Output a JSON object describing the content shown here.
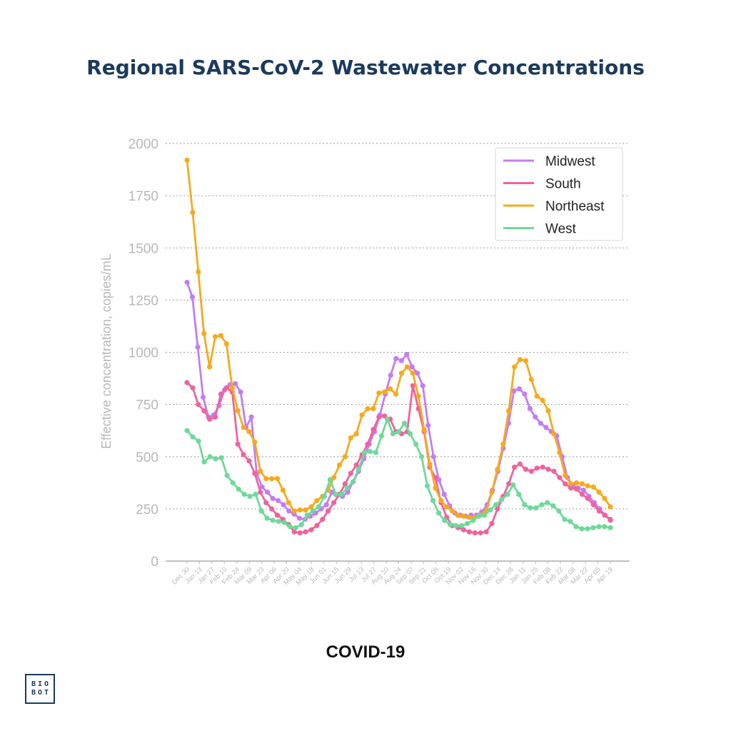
{
  "page": {
    "title": "Regional SARS-CoV-2 Wastewater Concentrations",
    "footer_title": "COVID-19",
    "logo_line1": "BIO",
    "logo_line2": "BOT"
  },
  "chart_data": {
    "type": "line",
    "ylabel": "Effective concentration, copies/mL",
    "ylim": [
      0,
      2000
    ],
    "yticks": [
      0,
      250,
      500,
      750,
      1000,
      1250,
      1500,
      1750,
      2000
    ],
    "grid": "horizontal-dotted",
    "legend": "top-right",
    "x_tick_labels": [
      "Dec 30",
      "Jan 13",
      "Jan 27",
      "Feb 10",
      "Feb 24",
      "Mar 09",
      "Mar 23",
      "Apr 06",
      "Apr 20",
      "May 04",
      "May 18",
      "Jun 01",
      "Jun 15",
      "Jun 29",
      "Jul 13",
      "Jul 27",
      "Aug 10",
      "Aug 24",
      "Sep 07",
      "Sep 21",
      "Oct 05",
      "Oct 19",
      "Nov 02",
      "Nov 16",
      "Nov 30",
      "Dec 14",
      "Dec 28",
      "Jan 11",
      "Jan 25",
      "Feb 08",
      "Feb 22",
      "Mar 08",
      "Mar 22",
      "Apr 05",
      "Apr 19"
    ],
    "series": [
      {
        "name": "Midwest",
        "color": "#c37cf5",
        "values": [
          1335,
          1265,
          1025,
          785,
          690,
          700,
          745,
          820,
          845,
          850,
          810,
          640,
          690,
          420,
          355,
          330,
          300,
          290,
          270,
          240,
          225,
          205,
          200,
          215,
          230,
          250,
          270,
          330,
          315,
          310,
          330,
          380,
          430,
          490,
          560,
          620,
          700,
          800,
          890,
          970,
          960,
          990,
          930,
          900,
          840,
          650,
          500,
          390,
          320,
          265,
          230,
          220,
          215,
          220,
          220,
          235,
          270,
          340,
          430,
          540,
          660,
          815,
          825,
          800,
          730,
          690,
          660,
          640,
          620,
          600,
          500,
          400,
          360,
          350,
          340,
          310,
          280,
          250,
          220,
          195
        ]
      },
      {
        "name": "South",
        "color": "#f0629e",
        "values": [
          855,
          830,
          750,
          720,
          680,
          690,
          800,
          830,
          810,
          560,
          510,
          480,
          420,
          330,
          280,
          250,
          220,
          200,
          175,
          140,
          135,
          140,
          150,
          170,
          200,
          240,
          280,
          320,
          370,
          420,
          460,
          510,
          560,
          630,
          690,
          695,
          680,
          620,
          610,
          620,
          840,
          730,
          620,
          450,
          400,
          280,
          210,
          170,
          160,
          150,
          140,
          135,
          135,
          140,
          180,
          250,
          310,
          370,
          450,
          465,
          440,
          430,
          445,
          450,
          440,
          430,
          400,
          370,
          350,
          345,
          320,
          300,
          270,
          240,
          220,
          200
        ]
      },
      {
        "name": "Northeast",
        "color": "#f7a91d",
        "values": [
          1920,
          1670,
          1385,
          1090,
          930,
          1075,
          1080,
          1040,
          830,
          720,
          640,
          620,
          570,
          430,
          395,
          395,
          395,
          340,
          280,
          240,
          245,
          245,
          260,
          290,
          310,
          340,
          400,
          460,
          500,
          590,
          610,
          700,
          730,
          730,
          805,
          810,
          825,
          800,
          900,
          930,
          900,
          790,
          630,
          465,
          350,
          290,
          260,
          240,
          220,
          215,
          210,
          210,
          220,
          240,
          330,
          440,
          560,
          720,
          930,
          965,
          960,
          870,
          790,
          770,
          720,
          610,
          520,
          410,
          370,
          375,
          370,
          360,
          355,
          330,
          300,
          260
        ]
      },
      {
        "name": "West",
        "color": "#6ed99a",
        "values": [
          625,
          595,
          575,
          475,
          500,
          490,
          495,
          410,
          375,
          345,
          320,
          310,
          320,
          240,
          205,
          195,
          190,
          185,
          165,
          160,
          175,
          220,
          240,
          260,
          310,
          390,
          320,
          320,
          350,
          380,
          440,
          520,
          525,
          520,
          600,
          680,
          610,
          620,
          660,
          610,
          560,
          500,
          360,
          290,
          230,
          195,
          175,
          170,
          170,
          180,
          195,
          215,
          220,
          245,
          270,
          295,
          320,
          365,
          320,
          270,
          255,
          255,
          270,
          280,
          265,
          240,
          200,
          190,
          165,
          155,
          155,
          160,
          165,
          165,
          160
        ]
      }
    ]
  }
}
